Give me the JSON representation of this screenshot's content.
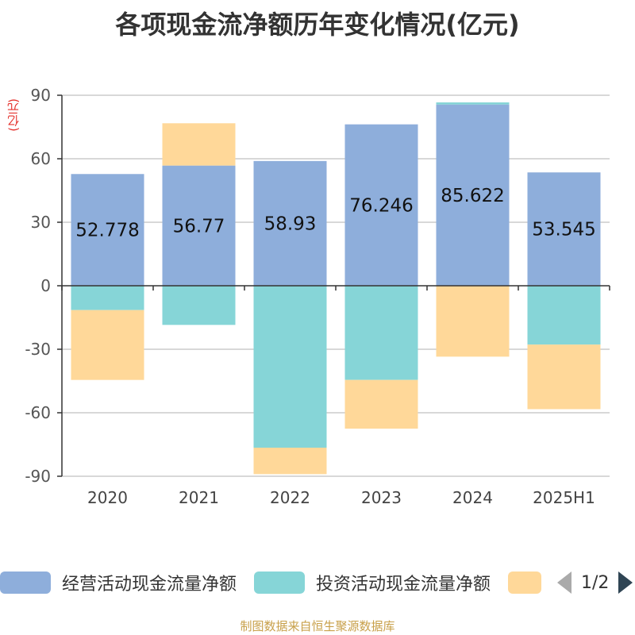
{
  "title": "各项现金流净额历年变化情况(亿元)",
  "unit_label": "(亿元)",
  "footer": "制图数据来自恒生聚源数据库",
  "legend": {
    "items": [
      {
        "label": "经营活动现金流量净额",
        "color": "#8eaedb"
      },
      {
        "label": "投资活动现金流量净额",
        "color": "#86d5d7"
      },
      {
        "label": "",
        "color": "#ffd899"
      }
    ],
    "page_text": "1/2"
  },
  "chart_data": {
    "type": "bar",
    "stacked": true,
    "categories": [
      "2020",
      "2021",
      "2022",
      "2023",
      "2024",
      "2025H1"
    ],
    "series": [
      {
        "name": "经营活动现金流量净额",
        "color": "#8eaedb",
        "values": [
          52.778,
          56.77,
          58.93,
          76.246,
          85.622,
          53.545
        ],
        "labels": [
          "52.778",
          "56.77",
          "58.93",
          "76.246",
          "85.622",
          "53.545"
        ]
      },
      {
        "name": "投资活动现金流量净额",
        "color": "#86d5d7",
        "values": [
          -11.5,
          -18.5,
          -76.5,
          -44.5,
          1.0,
          -27.8
        ]
      },
      {
        "color": "#ffd899",
        "values": [
          -33.0,
          20.0,
          -12.5,
          -23.0,
          -33.5,
          -30.5
        ]
      }
    ],
    "ylim": [
      -90,
      90
    ],
    "yticks": [
      -90,
      -60,
      -30,
      0,
      30,
      60,
      90
    ],
    "grid": true,
    "legend_position": "bottom"
  }
}
